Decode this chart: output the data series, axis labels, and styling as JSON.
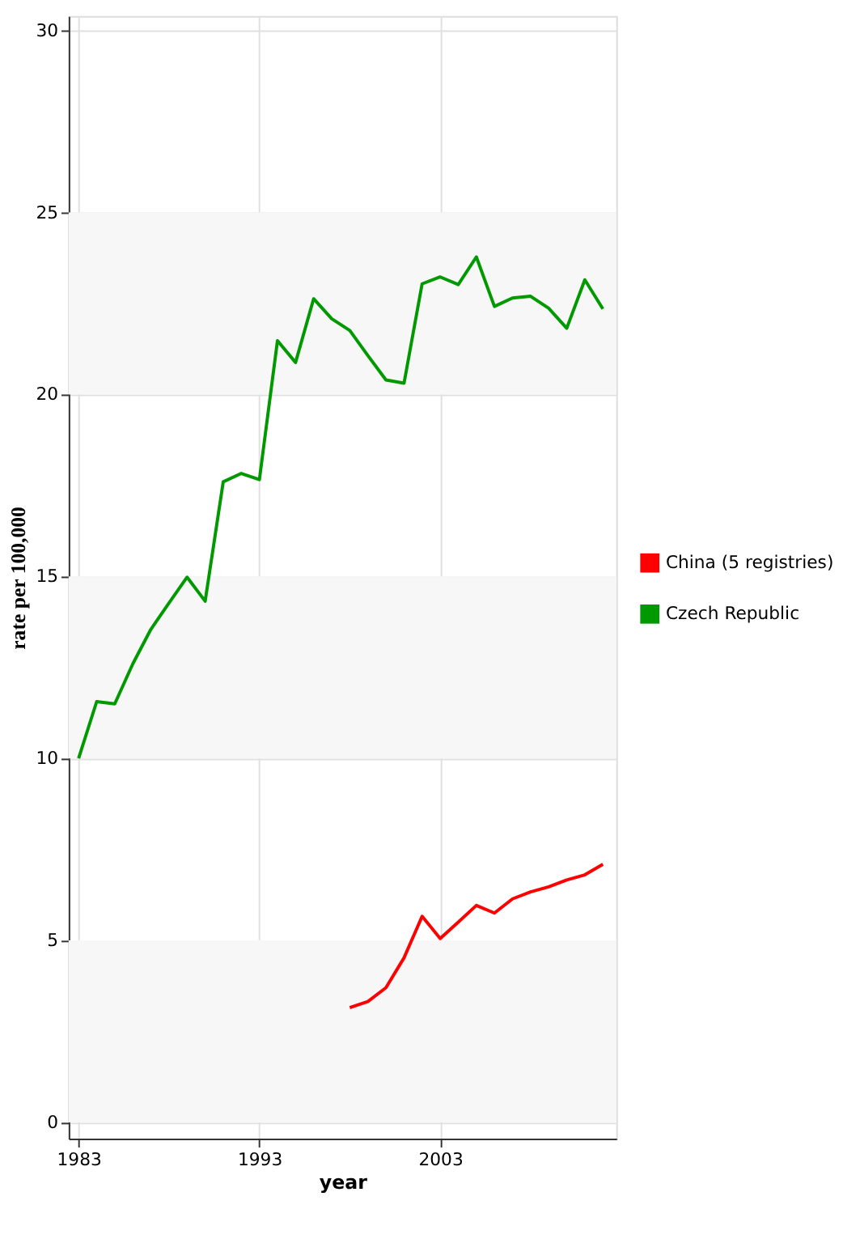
{
  "chart_data": {
    "type": "line",
    "xlabel": "year",
    "ylabel": "rate per 100,000",
    "xlim": [
      1982.45,
      2012.74
    ],
    "xticks": [
      1983,
      1993,
      2003
    ],
    "ylim": [
      -0.45,
      30.4
    ],
    "yticks": [
      0,
      5,
      10,
      15,
      20,
      25,
      30
    ],
    "grid": true,
    "legend": "right",
    "line_style": "solid",
    "marker": "none",
    "bands": [
      {
        "axis": "y",
        "from": 0,
        "to": 5,
        "label": null,
        "color": "#f7f7f7"
      },
      {
        "axis": "y",
        "from": 10,
        "to": 15,
        "label": null,
        "color": "#f7f7f7"
      },
      {
        "axis": "y",
        "from": 20,
        "to": 25,
        "label": null,
        "color": "#f7f7f7"
      }
    ],
    "series": [
      {
        "name": "China (5 registries)",
        "color": "#ff0000",
        "x": [
          1998,
          1999,
          2000,
          2001,
          2002,
          2003,
          2004,
          2005,
          2006,
          2007,
          2008,
          2009,
          2010,
          2011,
          2012
        ],
        "values": [
          3.15,
          3.32,
          3.7,
          4.52,
          5.66,
          5.05,
          5.5,
          5.96,
          5.75,
          6.14,
          6.33,
          6.47,
          6.66,
          6.8,
          7.09
        ]
      },
      {
        "name": "Czech Republic",
        "color": "#009900",
        "x": [
          1983,
          1984,
          1985,
          1986,
          1987,
          1988,
          1989,
          1990,
          1991,
          1992,
          1993,
          1994,
          1995,
          1996,
          1997,
          1998,
          1999,
          2000,
          2001,
          2002,
          2003,
          2004,
          2005,
          2006,
          2007,
          2008,
          2009,
          2010,
          2011,
          2012
        ],
        "values": [
          10.0,
          11.56,
          11.5,
          12.6,
          13.55,
          14.27,
          14.98,
          14.32,
          17.6,
          17.83,
          17.66,
          21.48,
          20.88,
          22.63,
          22.08,
          21.76,
          21.07,
          20.4,
          20.31,
          23.04,
          23.23,
          23.02,
          23.78,
          22.42,
          22.65,
          22.7,
          22.37,
          21.82,
          23.15,
          22.35
        ]
      }
    ]
  }
}
